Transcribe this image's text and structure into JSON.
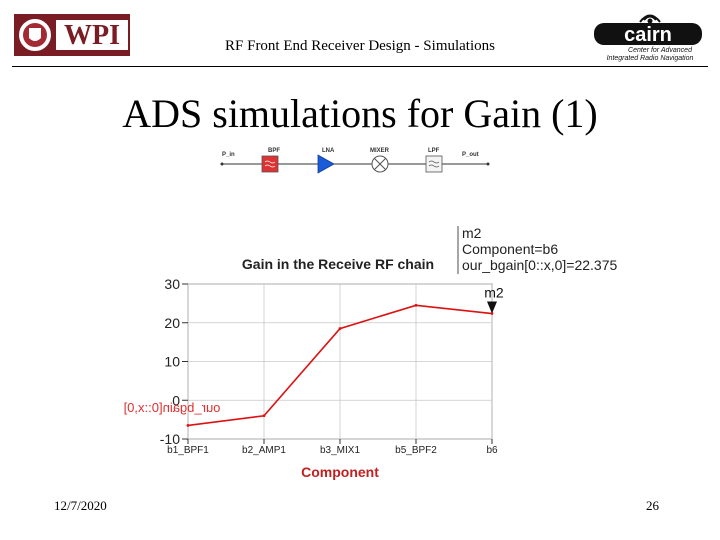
{
  "header": {
    "title": "RF Front End Receiver Design - Simulations",
    "logo_left_text": "WPI",
    "logo_right_text": "cairn",
    "logo_right_caption_line1": "Center for Advanced",
    "logo_right_caption_line2": "Integrated Radio Navigation"
  },
  "slide": {
    "title": "ADS simulations for Gain (1)"
  },
  "block_diagram": {
    "blocks": [
      {
        "label": "P_in"
      },
      {
        "label": "BPF"
      },
      {
        "label": "LNA"
      },
      {
        "label": "MIXER"
      },
      {
        "label": "LPF"
      },
      {
        "label": "P_out"
      }
    ]
  },
  "marker": {
    "name": "m2",
    "line1": "m2",
    "line2": "Component=b6",
    "line3": "our_bgain[0::x,0]=22.375"
  },
  "chart_data": {
    "type": "line",
    "title": "Gain in the Receive RF chain",
    "xlabel": "Component",
    "ylabel": "our_bgain[0::x,0]",
    "categories": [
      "b1_BPF1",
      "b2_AMP1",
      "b3_MIX1",
      "b5_BPF2",
      "b6"
    ],
    "series": [
      {
        "name": "our_bgain[0::x,0]",
        "values": [
          -6.5,
          -4,
          18.5,
          24.5,
          22.375
        ],
        "color": "#dd1111"
      }
    ],
    "ylim": [
      -10,
      30
    ],
    "yticks": [
      -10,
      0,
      10,
      20,
      30
    ],
    "grid": true
  },
  "footer": {
    "date": "12/7/2020",
    "page": "26"
  }
}
